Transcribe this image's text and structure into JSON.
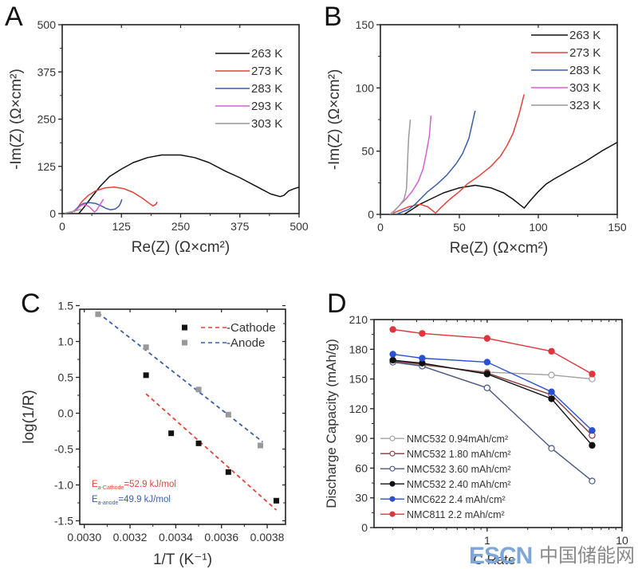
{
  "figure": {
    "watermark": {
      "latin": "ESCN",
      "chinese": "中国储能网",
      "latin_color": "#7ea7d8",
      "accent_color": "#e0453c",
      "chinese_color": "#8a8a8a"
    }
  },
  "chart_data": [
    {
      "panel": "A",
      "type": "line",
      "title": "",
      "xlabel": "Re(Z) (Ω×cm²)",
      "ylabel": "-Im(Z) (Ω×cm²)",
      "xlim": [
        0,
        500
      ],
      "ylim": [
        0,
        500
      ],
      "xticks": [
        0,
        125,
        250,
        375,
        500
      ],
      "yticks": [
        0,
        125,
        250,
        375,
        500
      ],
      "xtick_labels": [
        "0",
        "125",
        "250",
        "375",
        "500"
      ],
      "ytick_labels": [
        "0",
        "125",
        "250",
        "375",
        "500"
      ],
      "grid": false,
      "legend_position": "top-right",
      "series": [
        {
          "name": "263 K",
          "color": "#111111",
          "points": [
            [
              35,
              0
            ],
            [
              45,
              15
            ],
            [
              60,
              40
            ],
            [
              80,
              72
            ],
            [
              100,
              98
            ],
            [
              125,
              118
            ],
            [
              150,
              135
            ],
            [
              180,
              148
            ],
            [
              210,
              155
            ],
            [
              250,
              155
            ],
            [
              280,
              148
            ],
            [
              310,
              135
            ],
            [
              345,
              112
            ],
            [
              375,
              95
            ],
            [
              410,
              72
            ],
            [
              440,
              52
            ],
            [
              460,
              45
            ],
            [
              468,
              48
            ],
            [
              478,
              60
            ],
            [
              490,
              66
            ],
            [
              500,
              70
            ]
          ]
        },
        {
          "name": "273 K",
          "color": "#e0453c",
          "points": [
            [
              25,
              4
            ],
            [
              32,
              15
            ],
            [
              42,
              32
            ],
            [
              55,
              48
            ],
            [
              70,
              60
            ],
            [
              90,
              68
            ],
            [
              110,
              70
            ],
            [
              130,
              66
            ],
            [
              150,
              56
            ],
            [
              170,
              40
            ],
            [
              185,
              26
            ],
            [
              192,
              20
            ],
            [
              198,
              25
            ],
            [
              200,
              30
            ],
            [
              196,
              22
            ]
          ]
        },
        {
          "name": "283 K",
          "color": "#3a5fa8",
          "points": [
            [
              20,
              3
            ],
            [
              28,
              10
            ],
            [
              36,
              20
            ],
            [
              45,
              27
            ],
            [
              58,
              29
            ],
            [
              70,
              27
            ],
            [
              80,
              22
            ],
            [
              92,
              14
            ],
            [
              102,
              10
            ],
            [
              112,
              12
            ],
            [
              120,
              20
            ],
            [
              124,
              30
            ],
            [
              126,
              38
            ]
          ]
        },
        {
          "name": "293 K",
          "color": "#d660d0",
          "points": [
            [
              10,
              2
            ],
            [
              20,
              4
            ],
            [
              30,
              10
            ],
            [
              38,
              20
            ],
            [
              45,
              24
            ],
            [
              55,
              20
            ],
            [
              62,
              12
            ],
            [
              68,
              4
            ],
            [
              72,
              8
            ],
            [
              78,
              20
            ],
            [
              84,
              32
            ],
            [
              87,
              38
            ]
          ]
        },
        {
          "name": "303 K",
          "color": "#9a9a9a",
          "points": [
            [
              5,
              1
            ],
            [
              12,
              3
            ],
            [
              20,
              5
            ],
            [
              28,
              7
            ],
            [
              35,
              10
            ],
            [
              40,
              12
            ]
          ]
        }
      ]
    },
    {
      "panel": "B",
      "type": "line",
      "title": "",
      "xlabel": "Re(Z) (Ω×cm²)",
      "ylabel": "-Im(Z) (Ω×cm²)",
      "xlim": [
        0,
        150
      ],
      "ylim": [
        0,
        150
      ],
      "xticks": [
        0,
        50,
        100,
        150
      ],
      "yticks": [
        0,
        50,
        100,
        150
      ],
      "xtick_labels": [
        "0",
        "50",
        "100",
        "150"
      ],
      "ytick_labels": [
        "0",
        "50",
        "100",
        "150"
      ],
      "grid": false,
      "legend_position": "top-right",
      "series": [
        {
          "name": "263 K",
          "color": "#111111",
          "points": [
            [
              15,
              0
            ],
            [
              20,
              4
            ],
            [
              25,
              8
            ],
            [
              30,
              11
            ],
            [
              40,
              17
            ],
            [
              50,
              21
            ],
            [
              60,
              23
            ],
            [
              70,
              21
            ],
            [
              78,
              17
            ],
            [
              84,
              12
            ],
            [
              88,
              8
            ],
            [
              91,
              5
            ],
            [
              95,
              11
            ],
            [
              100,
              18
            ],
            [
              105,
              24
            ],
            [
              110,
              28
            ],
            [
              120,
              35
            ],
            [
              130,
              42
            ],
            [
              140,
              50
            ],
            [
              150,
              57
            ]
          ]
        },
        {
          "name": "273 K",
          "color": "#e0453c",
          "points": [
            [
              8,
              1
            ],
            [
              12,
              3
            ],
            [
              18,
              6
            ],
            [
              25,
              8
            ],
            [
              30,
              6
            ],
            [
              33,
              3
            ],
            [
              35,
              1
            ],
            [
              38,
              5
            ],
            [
              44,
              12
            ],
            [
              50,
              18
            ],
            [
              55,
              24
            ],
            [
              62,
              30
            ],
            [
              70,
              38
            ],
            [
              76,
              46
            ],
            [
              80,
              54
            ],
            [
              84,
              64
            ],
            [
              88,
              80
            ],
            [
              91,
              95
            ]
          ]
        },
        {
          "name": "283 K",
          "color": "#3a5fa8",
          "points": [
            [
              10,
              0
            ],
            [
              14,
              2
            ],
            [
              18,
              4
            ],
            [
              22,
              8
            ],
            [
              26,
              13
            ],
            [
              30,
              18
            ],
            [
              36,
              24
            ],
            [
              42,
              31
            ],
            [
              48,
              40
            ],
            [
              52,
              48
            ],
            [
              56,
              60
            ],
            [
              60,
              82
            ]
          ]
        },
        {
          "name": "303 K",
          "color": "#d660d0",
          "points": [
            [
              6,
              0
            ],
            [
              9,
              3
            ],
            [
              12,
              7
            ],
            [
              16,
              12
            ],
            [
              20,
              18
            ],
            [
              24,
              26
            ],
            [
              27,
              36
            ],
            [
              29,
              48
            ],
            [
              31,
              62
            ],
            [
              32,
              78
            ]
          ]
        },
        {
          "name": "323 K",
          "color": "#9a9a9a",
          "points": [
            [
              6,
              0
            ],
            [
              9,
              3
            ],
            [
              12,
              7
            ],
            [
              15,
              12
            ],
            [
              16.5,
              20
            ],
            [
              17,
              35
            ],
            [
              17.5,
              50
            ],
            [
              18,
              62
            ],
            [
              19,
              75
            ]
          ]
        }
      ]
    },
    {
      "panel": "C",
      "type": "scatter",
      "title": "",
      "xlabel": "1/T (K⁻¹)",
      "ylabel": "log(1/R)",
      "xlim": [
        0.00298,
        0.00388
      ],
      "ylim": [
        -1.55,
        1.45
      ],
      "xticks": [
        0.003,
        0.0032,
        0.0034,
        0.0036,
        0.0038
      ],
      "yticks": [
        -1.5,
        -1.0,
        -0.5,
        0.0,
        0.5,
        1.0,
        1.5
      ],
      "xtick_labels": [
        "0.0030",
        "0.0032",
        "0.0034",
        "0.0036",
        "0.0038"
      ],
      "ytick_labels": [
        "-1.5",
        "-1.0",
        "-0.5",
        "0.0",
        "0.5",
        "1.0",
        "1.5"
      ],
      "grid": false,
      "legend_position": "top-right",
      "series": [
        {
          "name": "Cathode",
          "marker_color": "#111111",
          "fit_color": "#e0453c",
          "x": [
            0.00327,
            0.00338,
            0.0035,
            0.00363,
            0.00384
          ],
          "y": [
            0.53,
            -0.28,
            -0.42,
            -0.82,
            -1.22
          ],
          "fit": [
            [
              0.00327,
              0.27
            ],
            [
              0.00384,
              -1.35
            ]
          ]
        },
        {
          "name": "Anode",
          "marker_color": "#999999",
          "fit_color": "#3a5fa8",
          "x": [
            0.00306,
            0.00327,
            0.0035,
            0.00363,
            0.00377
          ],
          "y": [
            1.38,
            0.92,
            0.33,
            -0.02,
            -0.45
          ],
          "fit": [
            [
              0.00306,
              1.4
            ],
            [
              0.00378,
              -0.4
            ]
          ]
        }
      ],
      "legend_labels": [
        "-Cathode",
        "-Anode"
      ],
      "annotations": [
        {
          "base": "E",
          "sub": "a-Cathode",
          "rest": "=52.9 kJ/mol",
          "color": "#e0453c"
        },
        {
          "base": "E",
          "sub": "a-anode",
          "rest": "=49.9 kJ/mol",
          "color": "#3a5fa8"
        }
      ]
    },
    {
      "panel": "D",
      "type": "line",
      "title": "",
      "xlabel": "C Rate",
      "ylabel": "Discharge Capacity (mAh/g)",
      "xscale": "log",
      "xlim": [
        0.145,
        10
      ],
      "ylim": [
        0,
        210
      ],
      "xticks": [
        1,
        10
      ],
      "xtick_labels": [
        "1",
        "10"
      ],
      "yticks": [
        0,
        30,
        60,
        90,
        120,
        150,
        180,
        210
      ],
      "ytick_labels": [
        "0",
        "30",
        "60",
        "90",
        "120",
        "150",
        "180",
        "210"
      ],
      "grid": false,
      "legend_position": "bottom-left",
      "x": [
        0.2,
        0.33,
        1,
        3,
        6
      ],
      "series": [
        {
          "name": "NMC532 0.94mAh/cm²",
          "color": "#a0a0a0",
          "marker": "open",
          "values": [
            167,
            164,
            157,
            154,
            150
          ]
        },
        {
          "name": "NMC532 1.80 mAh/cm²",
          "color": "#8a3a3a",
          "marker": "open",
          "values": [
            168,
            165,
            156,
            134,
            93
          ]
        },
        {
          "name": "NMC532 3.60 mAh/cm²",
          "color": "#4a5680",
          "marker": "open",
          "values": [
            167,
            163,
            141,
            80,
            47
          ]
        },
        {
          "name": "NMC532 2.40 mAh/cm²",
          "color": "#111111",
          "marker": "filled",
          "values": [
            169,
            166,
            155,
            130,
            83
          ]
        },
        {
          "name": "NMC622 2.4 mAh/cm²",
          "color": "#2a50d0",
          "marker": "filled",
          "values": [
            175,
            171,
            167,
            137,
            98
          ]
        },
        {
          "name": "NMC811 2.2 mAh/cm²",
          "color": "#e0353a",
          "marker": "filled",
          "values": [
            200,
            196,
            191,
            178,
            155
          ]
        }
      ]
    }
  ]
}
